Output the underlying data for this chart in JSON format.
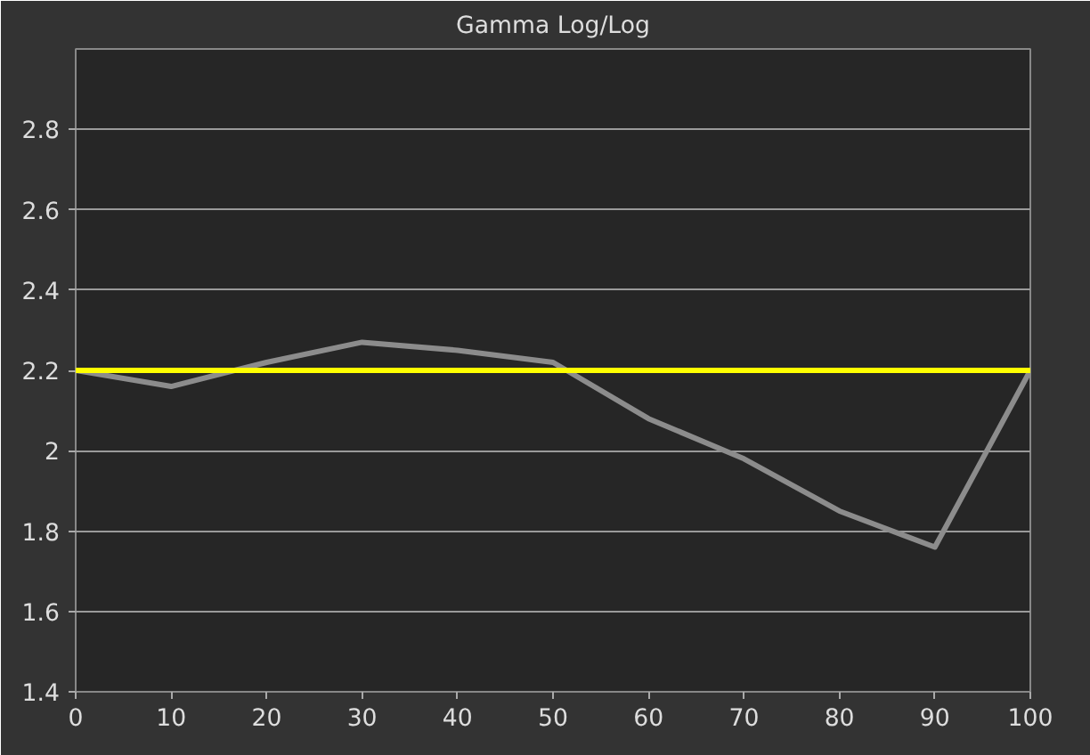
{
  "chart_data": {
    "type": "line",
    "title": "Gamma Log/Log",
    "x": [
      0,
      10,
      20,
      30,
      40,
      50,
      60,
      70,
      80,
      90,
      100
    ],
    "series": [
      {
        "color": "#8c8c8c",
        "values": [
          2.2,
          2.16,
          2.22,
          2.27,
          2.25,
          2.22,
          2.08,
          1.98,
          1.85,
          1.76,
          2.2
        ]
      }
    ],
    "xlim": [
      0,
      100
    ],
    "xticks": [
      0,
      10,
      20,
      30,
      40,
      50,
      60,
      70,
      80,
      90,
      100
    ],
    "ylim": [
      1.4,
      3.0
    ],
    "yticks": [
      1.4,
      1.6,
      1.8,
      2,
      2.2,
      2.4,
      2.6,
      2.8
    ],
    "ref_lines": [
      {
        "axis": "y",
        "value": 2.2,
        "color": "#ffff00"
      }
    ],
    "grid": "y",
    "line_style": "solid"
  }
}
